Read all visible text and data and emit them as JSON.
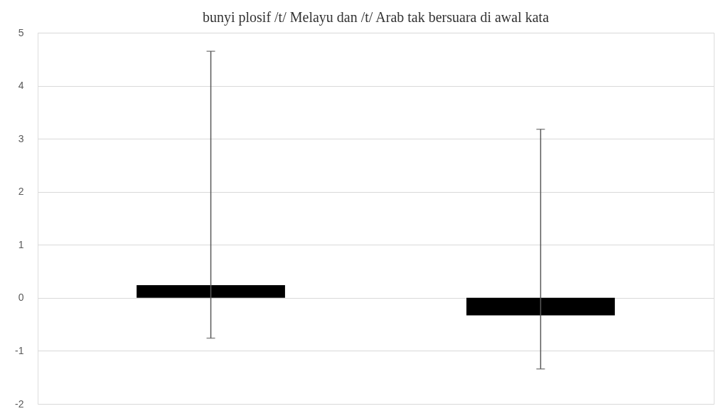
{
  "chart_data": {
    "type": "bar",
    "title": "bunyi plosif /t/ Melayu dan /t/ Arab tak bersuara di awal kata",
    "categories": [
      null,
      null
    ],
    "series": [
      {
        "color": "#000000",
        "values": [
          0.24,
          -0.33
        ],
        "errors": [
          [
            -0.76,
            4.65
          ],
          [
            -1.34,
            3.18
          ]
        ]
      }
    ],
    "ylim": [
      -2,
      5
    ],
    "yticks": [
      -2,
      -1,
      0,
      1,
      2,
      3,
      4,
      5
    ],
    "grid": "y",
    "tick_labels": "y"
  }
}
